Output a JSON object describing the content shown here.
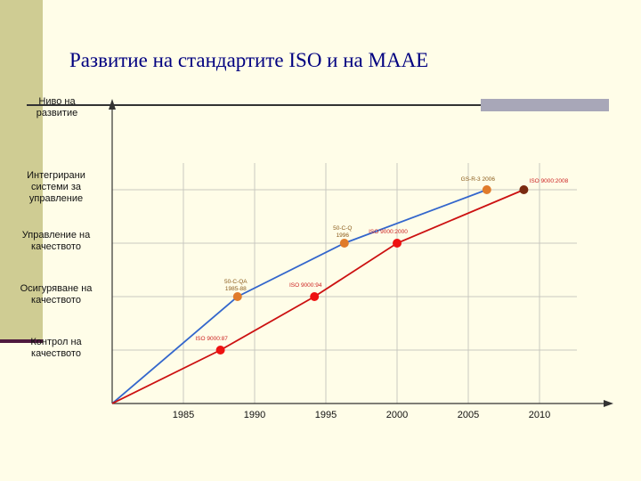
{
  "slide": {
    "title": "Развитие на стандартите ISO и на МААЕ"
  },
  "colors": {
    "background": "#fffde8",
    "band": "#cfcc93",
    "title": "#000080",
    "blue_series": "#3366cc",
    "red_series": "#cc1111"
  },
  "chart_data": {
    "type": "line",
    "title": "",
    "xlabel": "",
    "ylabel": "Ниво на развитие",
    "xlim": [
      1980,
      2010
    ],
    "x_ticks": [
      1985,
      1990,
      1995,
      2000,
      2005,
      2010
    ],
    "y_categories": [
      "Контрол на качеството",
      "Осигуряване на качеството",
      "Управление на качеството",
      "Интегрирани системи за управление"
    ],
    "ylim": [
      0,
      5
    ],
    "grid": true,
    "series": [
      {
        "color": "#3366cc",
        "points": [
          {
            "x": 1980,
            "y": 0,
            "label": ""
          },
          {
            "x": 1988.8,
            "y": 2,
            "label": "50-C-QA 1985-88",
            "marker_color": "#e07b2a"
          },
          {
            "x": 1996.3,
            "y": 3,
            "label": "50-C-Q 1996",
            "marker_color": "#e07b2a"
          },
          {
            "x": 2006.3,
            "y": 4,
            "label": "GS-R-3 2006",
            "marker_color": "#e07b2a"
          }
        ]
      },
      {
        "color": "#cc1111",
        "points": [
          {
            "x": 1980,
            "y": 0,
            "label": ""
          },
          {
            "x": 1987.6,
            "y": 1,
            "label": "ISO 9000:87",
            "marker_color": "#ee1111"
          },
          {
            "x": 1994.2,
            "y": 2,
            "label": "ISO 9000:94",
            "marker_color": "#ee1111"
          },
          {
            "x": 2000,
            "y": 3,
            "label": "ISO 9000:2000",
            "marker_color": "#ee1111"
          },
          {
            "x": 2008.9,
            "y": 4,
            "label": "ISO 9000:2008",
            "marker_color": "#7a2a10"
          }
        ]
      }
    ]
  }
}
